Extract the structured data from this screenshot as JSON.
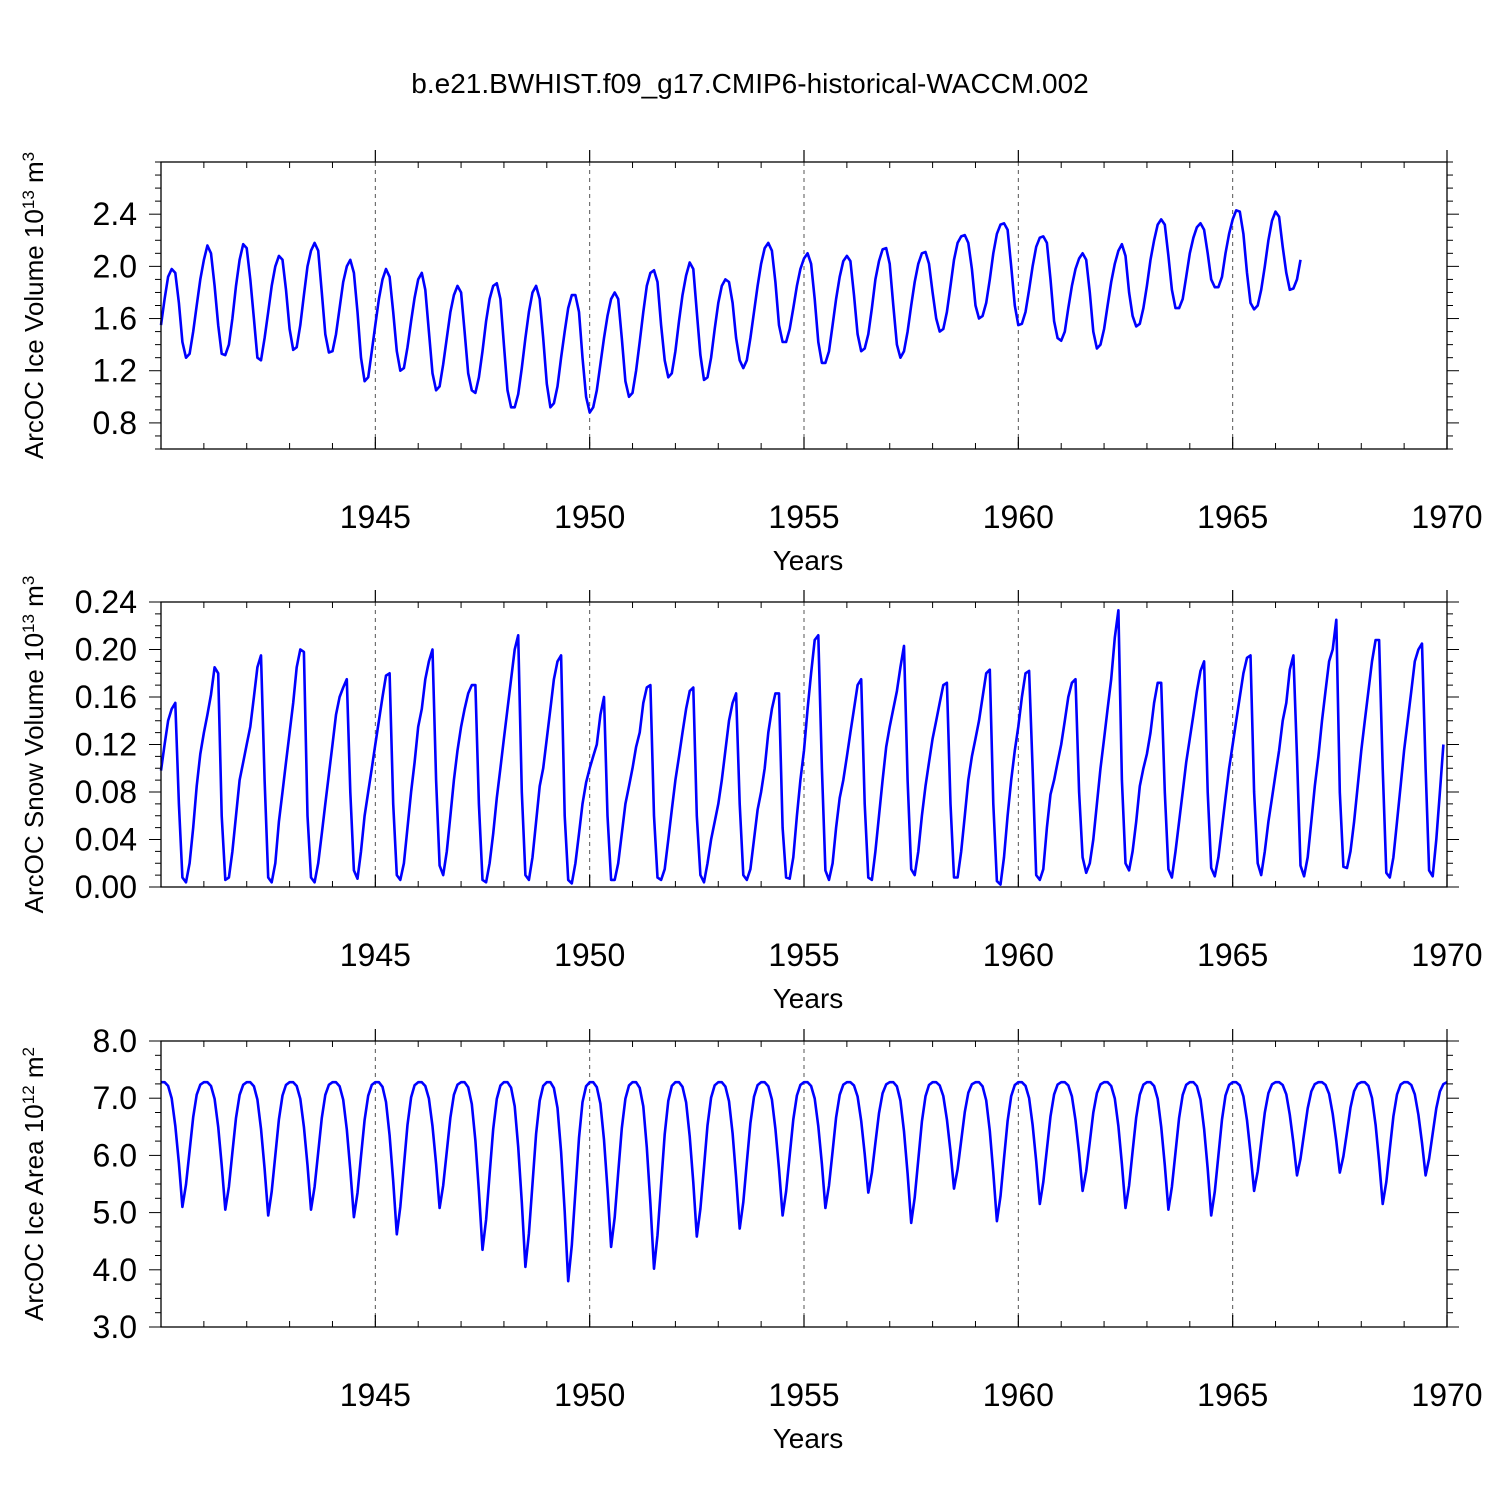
{
  "title": "b.e21.BWHIST.f09_g17.CMIP6-historical-WACCM.002",
  "colors": {
    "line": "#0000ff",
    "axis": "#000000",
    "grid": "#555555"
  },
  "chart_data": [
    {
      "type": "line",
      "xlabel": "Years",
      "ylabel": {
        "text": "ArcOC Ice Volume 10",
        "exponent": "13",
        "unit": " m",
        "unit_exponent": "3"
      },
      "xlim": [
        1940,
        1970
      ],
      "ylim": [
        0.6,
        2.8
      ],
      "xticks": [
        1945,
        1950,
        1955,
        1960,
        1965,
        1970
      ],
      "yticks": [
        0.8,
        1.2,
        1.6,
        2.0,
        2.4
      ],
      "yticklabels": [
        "0.8",
        "1.2",
        "1.6",
        "2.0",
        "2.4"
      ],
      "grid": "vertical dashed lines at major x ticks",
      "series": [
        {
          "start_year": 1940,
          "step_months": 1,
          "values": [
            1.55,
            1.75,
            1.92,
            1.98,
            1.95,
            1.72,
            1.42,
            1.3,
            1.33,
            1.5,
            1.7,
            1.9,
            2.05,
            2.16,
            2.1,
            1.85,
            1.55,
            1.33,
            1.32,
            1.4,
            1.6,
            1.85,
            2.05,
            2.17,
            2.14,
            1.9,
            1.6,
            1.3,
            1.28,
            1.45,
            1.65,
            1.85,
            2.0,
            2.08,
            2.05,
            1.82,
            1.52,
            1.36,
            1.38,
            1.55,
            1.78,
            2.0,
            2.12,
            2.18,
            2.12,
            1.8,
            1.48,
            1.34,
            1.35,
            1.48,
            1.68,
            1.88,
            2.0,
            2.05,
            1.95,
            1.65,
            1.3,
            1.12,
            1.15,
            1.35,
            1.55,
            1.75,
            1.9,
            1.98,
            1.92,
            1.65,
            1.35,
            1.2,
            1.22,
            1.38,
            1.58,
            1.76,
            1.9,
            1.95,
            1.82,
            1.5,
            1.18,
            1.05,
            1.08,
            1.25,
            1.45,
            1.65,
            1.78,
            1.85,
            1.8,
            1.5,
            1.18,
            1.05,
            1.03,
            1.15,
            1.35,
            1.58,
            1.75,
            1.85,
            1.87,
            1.75,
            1.4,
            1.05,
            0.92,
            0.92,
            1.02,
            1.22,
            1.45,
            1.65,
            1.8,
            1.85,
            1.75,
            1.45,
            1.1,
            0.92,
            0.95,
            1.08,
            1.3,
            1.5,
            1.68,
            1.78,
            1.78,
            1.65,
            1.3,
            1.0,
            0.88,
            0.92,
            1.05,
            1.25,
            1.45,
            1.62,
            1.75,
            1.8,
            1.75,
            1.45,
            1.12,
            1.0,
            1.03,
            1.2,
            1.42,
            1.65,
            1.85,
            1.95,
            1.97,
            1.88,
            1.55,
            1.28,
            1.15,
            1.18,
            1.35,
            1.58,
            1.78,
            1.93,
            2.03,
            1.98,
            1.65,
            1.32,
            1.13,
            1.15,
            1.3,
            1.52,
            1.72,
            1.85,
            1.9,
            1.88,
            1.72,
            1.45,
            1.28,
            1.22,
            1.28,
            1.45,
            1.65,
            1.85,
            2.02,
            2.14,
            2.18,
            2.12,
            1.88,
            1.55,
            1.42,
            1.42,
            1.52,
            1.68,
            1.85,
            1.98,
            2.06,
            2.1,
            2.02,
            1.75,
            1.42,
            1.26,
            1.26,
            1.35,
            1.55,
            1.75,
            1.92,
            2.04,
            2.08,
            2.04,
            1.78,
            1.48,
            1.35,
            1.37,
            1.48,
            1.68,
            1.9,
            2.04,
            2.13,
            2.14,
            2.02,
            1.7,
            1.4,
            1.3,
            1.35,
            1.5,
            1.7,
            1.88,
            2.02,
            2.1,
            2.11,
            2.02,
            1.8,
            1.6,
            1.5,
            1.52,
            1.65,
            1.85,
            2.05,
            2.18,
            2.23,
            2.24,
            2.18,
            1.98,
            1.7,
            1.6,
            1.62,
            1.72,
            1.9,
            2.1,
            2.25,
            2.32,
            2.33,
            2.28,
            2.0,
            1.7,
            1.55,
            1.56,
            1.65,
            1.82,
            2.0,
            2.15,
            2.22,
            2.23,
            2.18,
            1.9,
            1.58,
            1.45,
            1.43,
            1.5,
            1.68,
            1.85,
            1.98,
            2.06,
            2.1,
            2.05,
            1.8,
            1.5,
            1.37,
            1.4,
            1.52,
            1.7,
            1.88,
            2.02,
            2.12,
            2.17,
            2.08,
            1.8,
            1.62,
            1.54,
            1.56,
            1.68,
            1.85,
            2.05,
            2.2,
            2.32,
            2.36,
            2.32,
            2.08,
            1.82,
            1.68,
            1.68,
            1.75,
            1.92,
            2.1,
            2.22,
            2.3,
            2.33,
            2.28,
            2.1,
            1.9,
            1.84,
            1.84,
            1.92,
            2.1,
            2.25,
            2.36,
            2.43,
            2.42,
            2.25,
            1.95,
            1.72,
            1.67,
            1.7,
            1.82,
            2.0,
            2.2,
            2.35,
            2.42,
            2.38,
            2.15,
            1.95,
            1.82,
            1.83,
            1.9,
            2.05
          ]
        }
      ]
    },
    {
      "type": "line",
      "xlabel": "Years",
      "ylabel": {
        "text": "ArcOC Snow Volume 10",
        "exponent": "13",
        "unit": " m",
        "unit_exponent": "3"
      },
      "xlim": [
        1940,
        1970
      ],
      "ylim": [
        0.0,
        0.24
      ],
      "xticks": [
        1945,
        1950,
        1955,
        1960,
        1965,
        1970
      ],
      "yticks": [
        0.0,
        0.04,
        0.08,
        0.12,
        0.16,
        0.2,
        0.24
      ],
      "yticklabels": [
        "0.00",
        "0.04",
        "0.08",
        "0.12",
        "0.16",
        "0.20",
        "0.24"
      ],
      "grid": "vertical dashed lines at major x ticks",
      "series": [
        {
          "start_year": 1940,
          "step_months": 1,
          "values": [
            0.098,
            0.12,
            0.14,
            0.15,
            0.155,
            0.07,
            0.008,
            0.004,
            0.02,
            0.05,
            0.085,
            0.112,
            0.13,
            0.145,
            0.162,
            0.185,
            0.18,
            0.06,
            0.006,
            0.008,
            0.03,
            0.06,
            0.09,
            0.105,
            0.12,
            0.135,
            0.16,
            0.185,
            0.195,
            0.09,
            0.008,
            0.004,
            0.02,
            0.055,
            0.08,
            0.105,
            0.13,
            0.155,
            0.185,
            0.2,
            0.198,
            0.06,
            0.008,
            0.004,
            0.02,
            0.045,
            0.07,
            0.095,
            0.12,
            0.145,
            0.16,
            0.168,
            0.175,
            0.08,
            0.014,
            0.007,
            0.03,
            0.06,
            0.08,
            0.1,
            0.12,
            0.14,
            0.16,
            0.178,
            0.18,
            0.07,
            0.01,
            0.006,
            0.02,
            0.05,
            0.08,
            0.105,
            0.135,
            0.15,
            0.175,
            0.19,
            0.2,
            0.09,
            0.018,
            0.01,
            0.03,
            0.06,
            0.09,
            0.115,
            0.135,
            0.15,
            0.163,
            0.17,
            0.17,
            0.07,
            0.006,
            0.004,
            0.02,
            0.045,
            0.075,
            0.1,
            0.125,
            0.15,
            0.175,
            0.2,
            0.212,
            0.08,
            0.01,
            0.006,
            0.025,
            0.055,
            0.085,
            0.1,
            0.125,
            0.15,
            0.175,
            0.19,
            0.195,
            0.06,
            0.006,
            0.003,
            0.02,
            0.045,
            0.07,
            0.088,
            0.1,
            0.11,
            0.12,
            0.145,
            0.16,
            0.06,
            0.006,
            0.006,
            0.02,
            0.045,
            0.07,
            0.085,
            0.1,
            0.118,
            0.13,
            0.155,
            0.168,
            0.17,
            0.06,
            0.008,
            0.006,
            0.015,
            0.04,
            0.065,
            0.09,
            0.11,
            0.13,
            0.15,
            0.165,
            0.168,
            0.06,
            0.01,
            0.004,
            0.02,
            0.04,
            0.055,
            0.07,
            0.09,
            0.115,
            0.14,
            0.155,
            0.163,
            0.07,
            0.01,
            0.006,
            0.015,
            0.04,
            0.065,
            0.08,
            0.1,
            0.13,
            0.15,
            0.163,
            0.163,
            0.05,
            0.008,
            0.007,
            0.025,
            0.06,
            0.09,
            0.115,
            0.15,
            0.18,
            0.208,
            0.212,
            0.1,
            0.014,
            0.006,
            0.02,
            0.05,
            0.075,
            0.09,
            0.11,
            0.13,
            0.15,
            0.17,
            0.175,
            0.07,
            0.008,
            0.006,
            0.03,
            0.06,
            0.09,
            0.118,
            0.135,
            0.15,
            0.165,
            0.185,
            0.203,
            0.09,
            0.015,
            0.01,
            0.03,
            0.06,
            0.085,
            0.105,
            0.125,
            0.14,
            0.155,
            0.17,
            0.172,
            0.07,
            0.008,
            0.008,
            0.03,
            0.06,
            0.09,
            0.11,
            0.125,
            0.14,
            0.16,
            0.18,
            0.183,
            0.07,
            0.005,
            0.002,
            0.025,
            0.06,
            0.09,
            0.115,
            0.135,
            0.16,
            0.18,
            0.182,
            0.1,
            0.01,
            0.006,
            0.015,
            0.05,
            0.078,
            0.09,
            0.105,
            0.12,
            0.14,
            0.16,
            0.172,
            0.175,
            0.08,
            0.025,
            0.012,
            0.02,
            0.04,
            0.07,
            0.1,
            0.125,
            0.15,
            0.175,
            0.21,
            0.233,
            0.09,
            0.02,
            0.014,
            0.03,
            0.055,
            0.085,
            0.1,
            0.112,
            0.13,
            0.155,
            0.172,
            0.172,
            0.08,
            0.015,
            0.008,
            0.03,
            0.055,
            0.08,
            0.105,
            0.125,
            0.145,
            0.165,
            0.182,
            0.19,
            0.08,
            0.016,
            0.009,
            0.025,
            0.05,
            0.075,
            0.1,
            0.12,
            0.14,
            0.16,
            0.18,
            0.193,
            0.195,
            0.08,
            0.02,
            0.01,
            0.03,
            0.055,
            0.075,
            0.095,
            0.115,
            0.14,
            0.155,
            0.183,
            0.195,
            0.11,
            0.018,
            0.009,
            0.025,
            0.055,
            0.085,
            0.11,
            0.14,
            0.165,
            0.19,
            0.2,
            0.225,
            0.08,
            0.017,
            0.016,
            0.03,
            0.055,
            0.085,
            0.115,
            0.14,
            0.165,
            0.19,
            0.208,
            0.208,
            0.1,
            0.012,
            0.008,
            0.025,
            0.055,
            0.085,
            0.115,
            0.14,
            0.165,
            0.19,
            0.2,
            0.205,
            0.1,
            0.014,
            0.009,
            0.04,
            0.08,
            0.12
          ]
        }
      ]
    },
    {
      "type": "line",
      "xlabel": "Years",
      "ylabel": {
        "text": "ArcOC Ice Area 10",
        "exponent": "12",
        "unit": " m",
        "unit_exponent": "2"
      },
      "xlim": [
        1940,
        1970
      ],
      "ylim": [
        3.0,
        8.0
      ],
      "xticks": [
        1945,
        1950,
        1955,
        1960,
        1965,
        1970
      ],
      "yticks": [
        3.0,
        4.0,
        5.0,
        6.0,
        7.0,
        8.0
      ],
      "yticklabels": [
        "3.0",
        "4.0",
        "5.0",
        "6.0",
        "7.0",
        "8.0"
      ],
      "grid": "vertical dashed lines at major x ticks",
      "series": [
        {
          "start_year": 1940,
          "step_months": 1,
          "profile_peak": 7.28,
          "troughs": [
            5.1,
            5.05,
            4.95,
            5.05,
            4.92,
            4.62,
            5.08,
            4.35,
            4.05,
            3.8,
            4.4,
            4.02,
            4.58,
            4.72,
            4.95,
            5.08,
            5.35,
            4.82,
            5.42,
            4.85,
            5.15,
            5.38,
            5.08,
            5.05,
            4.95,
            5.38,
            5.65,
            5.7,
            5.15,
            5.65
          ]
        }
      ]
    }
  ]
}
